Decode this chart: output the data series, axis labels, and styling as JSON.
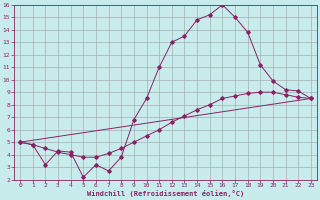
{
  "xlabel": "Windchill (Refroidissement éolien,°C)",
  "bg_color": "#c8ecec",
  "grid_color": "#a0a0a0",
  "line_color": "#882266",
  "xlim": [
    -0.5,
    23.5
  ],
  "ylim": [
    2,
    16
  ],
  "xticks": [
    0,
    1,
    2,
    3,
    4,
    5,
    6,
    7,
    8,
    9,
    10,
    11,
    12,
    13,
    14,
    15,
    16,
    17,
    18,
    19,
    20,
    21,
    22,
    23
  ],
  "yticks": [
    2,
    3,
    4,
    5,
    6,
    7,
    8,
    9,
    10,
    11,
    12,
    13,
    14,
    15,
    16
  ],
  "series1_x": [
    0,
    1,
    2,
    3,
    4,
    5,
    6,
    7,
    8,
    9,
    10,
    11,
    12,
    13,
    14,
    15,
    16,
    17,
    18,
    19,
    20,
    21,
    22,
    23
  ],
  "series1_y": [
    5.0,
    4.8,
    3.2,
    4.3,
    4.2,
    2.2,
    3.2,
    2.7,
    3.8,
    6.8,
    8.5,
    11.0,
    13.0,
    13.5,
    14.8,
    15.2,
    16.0,
    15.0,
    13.8,
    11.2,
    9.9,
    9.2,
    9.1,
    8.5
  ],
  "series2_x": [
    0,
    1,
    2,
    3,
    4,
    5,
    6,
    7,
    8,
    9,
    10,
    11,
    12,
    13,
    14,
    15,
    16,
    17,
    18,
    19,
    20,
    21,
    22,
    23
  ],
  "series2_y": [
    5.0,
    4.8,
    4.5,
    4.2,
    4.0,
    3.8,
    3.8,
    4.1,
    4.5,
    5.0,
    5.5,
    6.0,
    6.6,
    7.1,
    7.6,
    8.0,
    8.5,
    8.7,
    8.9,
    9.0,
    9.0,
    8.8,
    8.6,
    8.5
  ],
  "series3_x": [
    0,
    23
  ],
  "series3_y": [
    5.0,
    8.5
  ]
}
